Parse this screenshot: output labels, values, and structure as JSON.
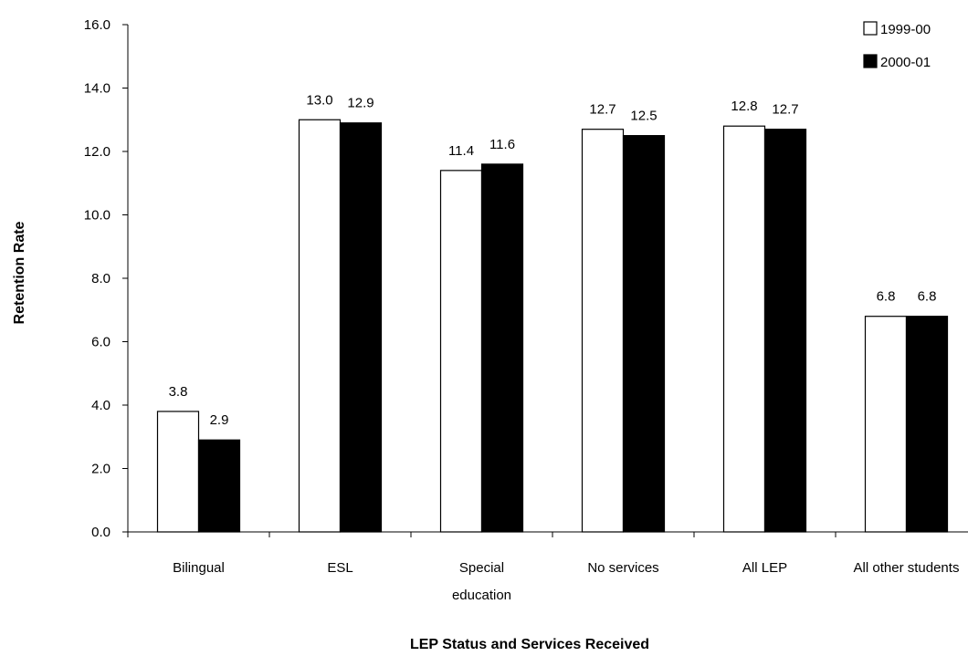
{
  "chart_data": {
    "type": "bar",
    "title": "",
    "xlabel": "LEP Status and Services Received",
    "ylabel": "Retention Rate",
    "ylim": [
      0,
      16
    ],
    "y_ticks": [
      "0.0",
      "2.0",
      "4.0",
      "6.0",
      "8.0",
      "10.0",
      "12.0",
      "14.0",
      "16.0"
    ],
    "categories": [
      [
        "Bilingual"
      ],
      [
        "ESL"
      ],
      [
        "Special",
        "education"
      ],
      [
        "No services"
      ],
      [
        "All LEP"
      ],
      [
        "All other students"
      ]
    ],
    "series": [
      {
        "name": "1999-00",
        "color": "#ffffff",
        "values": [
          3.8,
          13.0,
          11.4,
          12.7,
          12.8,
          6.8
        ],
        "labels": [
          "3.8",
          "13.0",
          "11.4",
          "12.7",
          "12.8",
          "6.8"
        ]
      },
      {
        "name": "2000-01",
        "color": "#000000",
        "values": [
          2.9,
          12.9,
          11.6,
          12.5,
          12.7,
          6.8
        ],
        "labels": [
          "2.9",
          "12.9",
          "11.6",
          "12.5",
          "12.7",
          "6.8"
        ]
      }
    ],
    "legend_position": "top-right",
    "grid": false
  }
}
